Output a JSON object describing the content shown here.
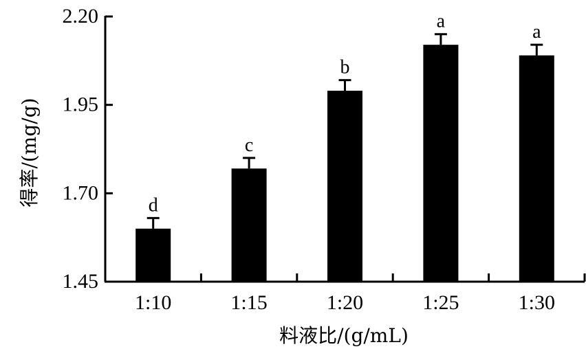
{
  "chart_data": {
    "type": "bar",
    "categories": [
      "1:10",
      "1:15",
      "1:20",
      "1:25",
      "1:30"
    ],
    "values": [
      1.6,
      1.77,
      1.99,
      2.12,
      2.09
    ],
    "errors": [
      0.03,
      0.03,
      0.03,
      0.03,
      0.03
    ],
    "significance": [
      "d",
      "c",
      "b",
      "a",
      "a"
    ],
    "ylim": [
      1.45,
      2.2
    ],
    "yticks": [
      "1.45",
      "1.70",
      "1.95",
      "2.20"
    ],
    "xlabel": "料液比/(g/mL)",
    "ylabel": "得率/(mg/g)",
    "bar_color": "#000000",
    "grid": false
  }
}
